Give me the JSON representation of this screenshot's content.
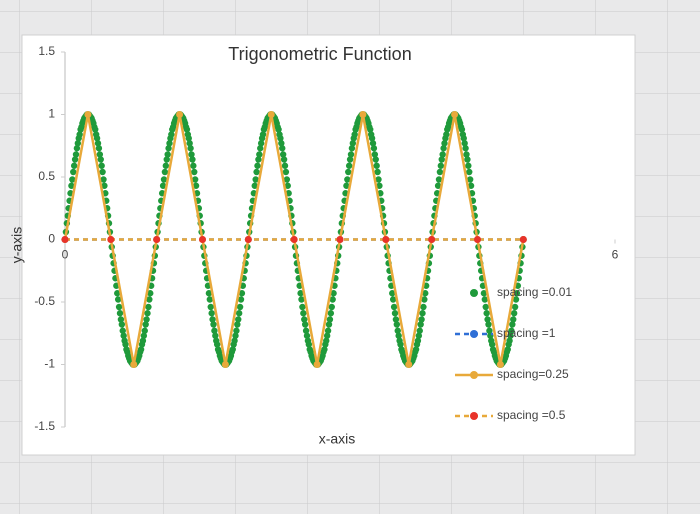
{
  "chart_data": {
    "type": "scatter",
    "title": "Trigonometric Function",
    "x_label": "x-axis",
    "y_label": "y-axis",
    "xlim": [
      0,
      6
    ],
    "xticks": [
      0,
      6
    ],
    "ylim": [
      -1.5,
      1.5
    ],
    "yticks": [
      1.5,
      1,
      0.5,
      0,
      -0.5,
      -1,
      -1.5
    ],
    "grid": false,
    "legend": "right",
    "series": [
      {
        "name": "spacing =0.01",
        "color": "#1f9a3b",
        "line": "none",
        "x": [
          0,
          0.01,
          0.02,
          0.03,
          0.04,
          0.05,
          0.06,
          0.07,
          0.08,
          0.09,
          0.1,
          0.11,
          0.12,
          0.13,
          0.14,
          0.15,
          0.16,
          0.17,
          0.18,
          0.19,
          0.2,
          0.21,
          0.22,
          0.23,
          0.24,
          0.25,
          0.26,
          0.27,
          0.28,
          0.29,
          0.3,
          0.31,
          0.32,
          0.33,
          0.34,
          0.35,
          0.36,
          0.37,
          0.38,
          0.39,
          0.4,
          0.41,
          0.42,
          0.43,
          0.44,
          0.45,
          0.46,
          0.47,
          0.48,
          0.49,
          0.5,
          0.51,
          0.52,
          0.53,
          0.54,
          0.55,
          0.56,
          0.57,
          0.58,
          0.59,
          0.6,
          0.61,
          0.62,
          0.63,
          0.64,
          0.65,
          0.66,
          0.67,
          0.68,
          0.69,
          0.7,
          0.71,
          0.72,
          0.73,
          0.74,
          0.75,
          0.76,
          0.77,
          0.78,
          0.79,
          0.8,
          0.81,
          0.82,
          0.83,
          0.84,
          0.85,
          0.86,
          0.87,
          0.88,
          0.89,
          0.9,
          0.91,
          0.92,
          0.93,
          0.94,
          0.95,
          0.96,
          0.97,
          0.98,
          0.99,
          1,
          1.01,
          1.02,
          1.03,
          1.04,
          1.05,
          1.06,
          1.07,
          1.08,
          1.09,
          1.1,
          1.11,
          1.12,
          1.13,
          1.14,
          1.15,
          1.16,
          1.17,
          1.18,
          1.19,
          1.2,
          1.21,
          1.22,
          1.23,
          1.24,
          1.25,
          1.26,
          1.27,
          1.28,
          1.29,
          1.3,
          1.31,
          1.32,
          1.33,
          1.34,
          1.35,
          1.36,
          1.37,
          1.38,
          1.39,
          1.4,
          1.41,
          1.42,
          1.43,
          1.44,
          1.45,
          1.46,
          1.47,
          1.48,
          1.49,
          1.5,
          1.51,
          1.52,
          1.53,
          1.54,
          1.55,
          1.56,
          1.57,
          1.58,
          1.59,
          1.6,
          1.61,
          1.62,
          1.63,
          1.64,
          1.65,
          1.66,
          1.67,
          1.68,
          1.69,
          1.7,
          1.71,
          1.72,
          1.73,
          1.74,
          1.75,
          1.76,
          1.77,
          1.78,
          1.79,
          1.8,
          1.81,
          1.82,
          1.83,
          1.84,
          1.85,
          1.86,
          1.87,
          1.88,
          1.89,
          1.9,
          1.91,
          1.92,
          1.93,
          1.94,
          1.95,
          1.96,
          1.97,
          1.98,
          1.99,
          2,
          2.01,
          2.02,
          2.03,
          2.04,
          2.05,
          2.06,
          2.07,
          2.08,
          2.09,
          2.1,
          2.11,
          2.12,
          2.13,
          2.14,
          2.15,
          2.16,
          2.17,
          2.18,
          2.19,
          2.2,
          2.21,
          2.22,
          2.23,
          2.24,
          2.25,
          2.26,
          2.27,
          2.28,
          2.29,
          2.3,
          2.31,
          2.32,
          2.33,
          2.34,
          2.35,
          2.36,
          2.37,
          2.38,
          2.39,
          2.4,
          2.41,
          2.42,
          2.43,
          2.44,
          2.45,
          2.46,
          2.47,
          2.48,
          2.49,
          2.5,
          2.51,
          2.52,
          2.53,
          2.54,
          2.55,
          2.56,
          2.57,
          2.58,
          2.59,
          2.6,
          2.61,
          2.62,
          2.63,
          2.64,
          2.65,
          2.66,
          2.67,
          2.68,
          2.69,
          2.7,
          2.71,
          2.72,
          2.73,
          2.74,
          2.75,
          2.76,
          2.77,
          2.78,
          2.79,
          2.8,
          2.81,
          2.82,
          2.83,
          2.84,
          2.85,
          2.86,
          2.87,
          2.88,
          2.89,
          2.9,
          2.91,
          2.92,
          2.93,
          2.94,
          2.95,
          2.96,
          2.97,
          2.98,
          2.99,
          3,
          3.01,
          3.02,
          3.03,
          3.04,
          3.05,
          3.06,
          3.07,
          3.08,
          3.09,
          3.1,
          3.11,
          3.12,
          3.13,
          3.14,
          3.15,
          3.16,
          3.17,
          3.18,
          3.19,
          3.2,
          3.21,
          3.22,
          3.23,
          3.24,
          3.25,
          3.26,
          3.27,
          3.28,
          3.29,
          3.3,
          3.31,
          3.32,
          3.33,
          3.34,
          3.35,
          3.36,
          3.37,
          3.38,
          3.39,
          3.4,
          3.41,
          3.42,
          3.43,
          3.44,
          3.45,
          3.46,
          3.47,
          3.48,
          3.49,
          3.5,
          3.51,
          3.52,
          3.53,
          3.54,
          3.55,
          3.56,
          3.57,
          3.58,
          3.59,
          3.6,
          3.61,
          3.62,
          3.63,
          3.64,
          3.65,
          3.66,
          3.67,
          3.68,
          3.69,
          3.7,
          3.71,
          3.72,
          3.73,
          3.74,
          3.75,
          3.76,
          3.77,
          3.78,
          3.79,
          3.8,
          3.81,
          3.82,
          3.83,
          3.84,
          3.85,
          3.86,
          3.87,
          3.88,
          3.89,
          3.9,
          3.91,
          3.92,
          3.93,
          3.94,
          3.95,
          3.96,
          3.97,
          3.98,
          3.99,
          4,
          4.01,
          4.02,
          4.03,
          4.04,
          4.05,
          4.06,
          4.07,
          4.08,
          4.09,
          4.1,
          4.11,
          4.12,
          4.13,
          4.14,
          4.15,
          4.16,
          4.17,
          4.18,
          4.19,
          4.2,
          4.21,
          4.22,
          4.23,
          4.24,
          4.25,
          4.26,
          4.27,
          4.28,
          4.29,
          4.3,
          4.31,
          4.32,
          4.33,
          4.34,
          4.35,
          4.36,
          4.37,
          4.38,
          4.39,
          4.4,
          4.41,
          4.42,
          4.43,
          4.44,
          4.45,
          4.46,
          4.47,
          4.48,
          4.49,
          4.5,
          4.51,
          4.52,
          4.53,
          4.54,
          4.55,
          4.56,
          4.57,
          4.58,
          4.59,
          4.6,
          4.61,
          4.62,
          4.63,
          4.64,
          4.65,
          4.66,
          4.67,
          4.68,
          4.69,
          4.7,
          4.71,
          4.72,
          4.73,
          4.74,
          4.75,
          4.76,
          4.77,
          4.78,
          4.79,
          4.8,
          4.81,
          4.82,
          4.83,
          4.84,
          4.85,
          4.86,
          4.87,
          4.88,
          4.89,
          4.9,
          4.91,
          4.92,
          4.93,
          4.94,
          4.95,
          4.96,
          4.97,
          4.98,
          4.99,
          5
        ],
        "values": [
          0,
          0.06,
          0.13,
          0.19,
          0.25,
          0.31,
          0.37,
          0.43,
          0.48,
          0.54,
          0.59,
          0.64,
          0.68,
          0.73,
          0.77,
          0.81,
          0.84,
          0.88,
          0.9,
          0.93,
          0.95,
          0.97,
          0.98,
          0.99,
          1,
          1,
          1,
          0.99,
          0.98,
          0.97,
          0.95,
          0.93,
          0.9,
          0.88,
          0.84,
          0.81,
          0.77,
          0.73,
          0.68,
          0.64,
          0.59,
          0.54,
          0.48,
          0.43,
          0.37,
          0.31,
          0.25,
          0.19,
          0.13,
          0.06,
          0,
          -0.06,
          -0.13,
          -0.19,
          -0.25,
          -0.31,
          -0.37,
          -0.43,
          -0.48,
          -0.54,
          -0.59,
          -0.64,
          -0.68,
          -0.73,
          -0.77,
          -0.81,
          -0.84,
          -0.88,
          -0.9,
          -0.93,
          -0.95,
          -0.97,
          -0.98,
          -0.99,
          -1,
          -1,
          -1,
          -0.99,
          -0.98,
          -0.97,
          -0.95,
          -0.93,
          -0.9,
          -0.88,
          -0.84,
          -0.81,
          -0.77,
          -0.73,
          -0.68,
          -0.64,
          -0.59,
          -0.54,
          -0.48,
          -0.43,
          -0.37,
          -0.31,
          -0.25,
          -0.19,
          -0.13,
          -0.06,
          0,
          0.06,
          0.13,
          0.19,
          0.25,
          0.31,
          0.37,
          0.43,
          0.48,
          0.54,
          0.59,
          0.64,
          0.68,
          0.73,
          0.77,
          0.81,
          0.84,
          0.88,
          0.9,
          0.93,
          0.95,
          0.97,
          0.98,
          0.99,
          1,
          1,
          1,
          0.99,
          0.98,
          0.97,
          0.95,
          0.93,
          0.9,
          0.88,
          0.84,
          0.81,
          0.77,
          0.73,
          0.68,
          0.64,
          0.59,
          0.54,
          0.48,
          0.43,
          0.37,
          0.31,
          0.25,
          0.19,
          0.13,
          0.06,
          0,
          -0.06,
          -0.13,
          -0.19,
          -0.25,
          -0.31,
          -0.37,
          -0.43,
          -0.48,
          -0.54,
          -0.59,
          -0.64,
          -0.68,
          -0.73,
          -0.77,
          -0.81,
          -0.84,
          -0.88,
          -0.9,
          -0.93,
          -0.95,
          -0.97,
          -0.98,
          -0.99,
          -1,
          -1,
          -1,
          -0.99,
          -0.98,
          -0.97,
          -0.95,
          -0.93,
          -0.9,
          -0.88,
          -0.84,
          -0.81,
          -0.77,
          -0.73,
          -0.68,
          -0.64,
          -0.59,
          -0.54,
          -0.48,
          -0.43,
          -0.37,
          -0.31,
          -0.25,
          -0.19,
          -0.13,
          -0.06,
          0,
          0.06,
          0.13,
          0.19,
          0.25,
          0.31,
          0.37,
          0.43,
          0.48,
          0.54,
          0.59,
          0.64,
          0.68,
          0.73,
          0.77,
          0.81,
          0.84,
          0.88,
          0.9,
          0.93,
          0.95,
          0.97,
          0.98,
          0.99,
          1,
          1,
          1,
          0.99,
          0.98,
          0.97,
          0.95,
          0.93,
          0.9,
          0.88,
          0.84,
          0.81,
          0.77,
          0.73,
          0.68,
          0.64,
          0.59,
          0.54,
          0.48,
          0.43,
          0.37,
          0.31,
          0.25,
          0.19,
          0.13,
          0.06,
          0,
          -0.06,
          -0.13,
          -0.19,
          -0.25,
          -0.31,
          -0.37,
          -0.43,
          -0.48,
          -0.54,
          -0.59,
          -0.64,
          -0.68,
          -0.73,
          -0.77,
          -0.81,
          -0.84,
          -0.88,
          -0.9,
          -0.93,
          -0.95,
          -0.97,
          -0.98,
          -0.99,
          -1,
          -1,
          -1,
          -0.99,
          -0.98,
          -0.97,
          -0.95,
          -0.93,
          -0.9,
          -0.88,
          -0.84,
          -0.81,
          -0.77,
          -0.73,
          -0.68,
          -0.64,
          -0.59,
          -0.54,
          -0.48,
          -0.43,
          -0.37,
          -0.31,
          -0.25,
          -0.19,
          -0.13,
          -0.06,
          0,
          0.06,
          0.13,
          0.19,
          0.25,
          0.31,
          0.37,
          0.43,
          0.48,
          0.54,
          0.59,
          0.64,
          0.68,
          0.73,
          0.77,
          0.81,
          0.84,
          0.88,
          0.9,
          0.93,
          0.95,
          0.97,
          0.98,
          0.99,
          1,
          1,
          1,
          0.99,
          0.98,
          0.97,
          0.95,
          0.93,
          0.9,
          0.88,
          0.84,
          0.81,
          0.77,
          0.73,
          0.68,
          0.64,
          0.59,
          0.54,
          0.48,
          0.43,
          0.37,
          0.31,
          0.25,
          0.19,
          0.13,
          0.06,
          0,
          -0.06,
          -0.13,
          -0.19,
          -0.25,
          -0.31,
          -0.37,
          -0.43,
          -0.48,
          -0.54,
          -0.59,
          -0.64,
          -0.68,
          -0.73,
          -0.77,
          -0.81,
          -0.84,
          -0.88,
          -0.9,
          -0.93,
          -0.95,
          -0.97,
          -0.98,
          -0.99,
          -1,
          -1,
          -1,
          -0.99,
          -0.98,
          -0.97,
          -0.95,
          -0.93,
          -0.9,
          -0.88,
          -0.84,
          -0.81,
          -0.77,
          -0.73,
          -0.68,
          -0.64,
          -0.59,
          -0.54,
          -0.48,
          -0.43,
          -0.37,
          -0.31,
          -0.25,
          -0.19,
          -0.13,
          -0.06,
          0,
          0.06,
          0.13,
          0.19,
          0.25,
          0.31,
          0.37,
          0.43,
          0.48,
          0.54,
          0.59,
          0.64,
          0.68,
          0.73,
          0.77,
          0.81,
          0.84,
          0.88,
          0.9,
          0.93,
          0.95,
          0.97,
          0.98,
          0.99,
          1,
          1,
          1,
          0.99,
          0.98,
          0.97,
          0.95,
          0.93,
          0.9,
          0.88,
          0.84,
          0.81,
          0.77,
          0.73,
          0.68,
          0.64,
          0.59,
          0.54,
          0.48,
          0.43,
          0.37,
          0.31,
          0.25,
          0.19,
          0.13,
          0.06,
          0,
          -0.06,
          -0.13,
          -0.19,
          -0.25,
          -0.31,
          -0.37,
          -0.43,
          -0.48,
          -0.54,
          -0.59,
          -0.64,
          -0.68,
          -0.73,
          -0.77,
          -0.81,
          -0.84,
          -0.88,
          -0.9,
          -0.93,
          -0.95,
          -0.97,
          -0.98,
          -0.99,
          -1,
          -1,
          -1,
          -0.99,
          -0.98,
          -0.97,
          -0.95,
          -0.93,
          -0.9,
          -0.88,
          -0.84,
          -0.81,
          -0.77,
          -0.73,
          -0.68,
          -0.64,
          -0.59,
          -0.54,
          -0.48,
          -0.43,
          -0.37,
          -0.31,
          -0.25,
          -0.19,
          -0.13,
          -0.06,
          0
        ]
      },
      {
        "name": "spacing =1",
        "color": "#2f6fd6",
        "line": "dashed",
        "x": [
          0,
          1,
          2,
          3,
          4,
          5
        ],
        "values": [
          0,
          0,
          0,
          0,
          0,
          0
        ]
      },
      {
        "name": "spacing=0.25",
        "color": "#e8a93a",
        "line": "solid",
        "x": [
          0,
          0.25,
          0.5,
          0.75,
          1,
          1.25,
          1.5,
          1.75,
          2,
          2.25,
          2.5,
          2.75,
          3,
          3.25,
          3.5,
          3.75,
          4,
          4.25,
          4.5,
          4.75,
          5
        ],
        "values": [
          0,
          1,
          0,
          -1,
          0,
          1,
          0,
          -1,
          0,
          1,
          0,
          -1,
          0,
          1,
          0,
          -1,
          0,
          1,
          0,
          -1,
          0
        ]
      },
      {
        "name": "spacing =0.5",
        "color": "#e8332a",
        "line_color": "#e8a93a",
        "line": "dashed",
        "x": [
          0,
          0.5,
          1,
          1.5,
          2,
          2.5,
          3,
          3.5,
          4,
          4.5,
          5
        ],
        "values": [
          0,
          0,
          0,
          0,
          0,
          0,
          0,
          0,
          0,
          0,
          0
        ]
      }
    ]
  }
}
